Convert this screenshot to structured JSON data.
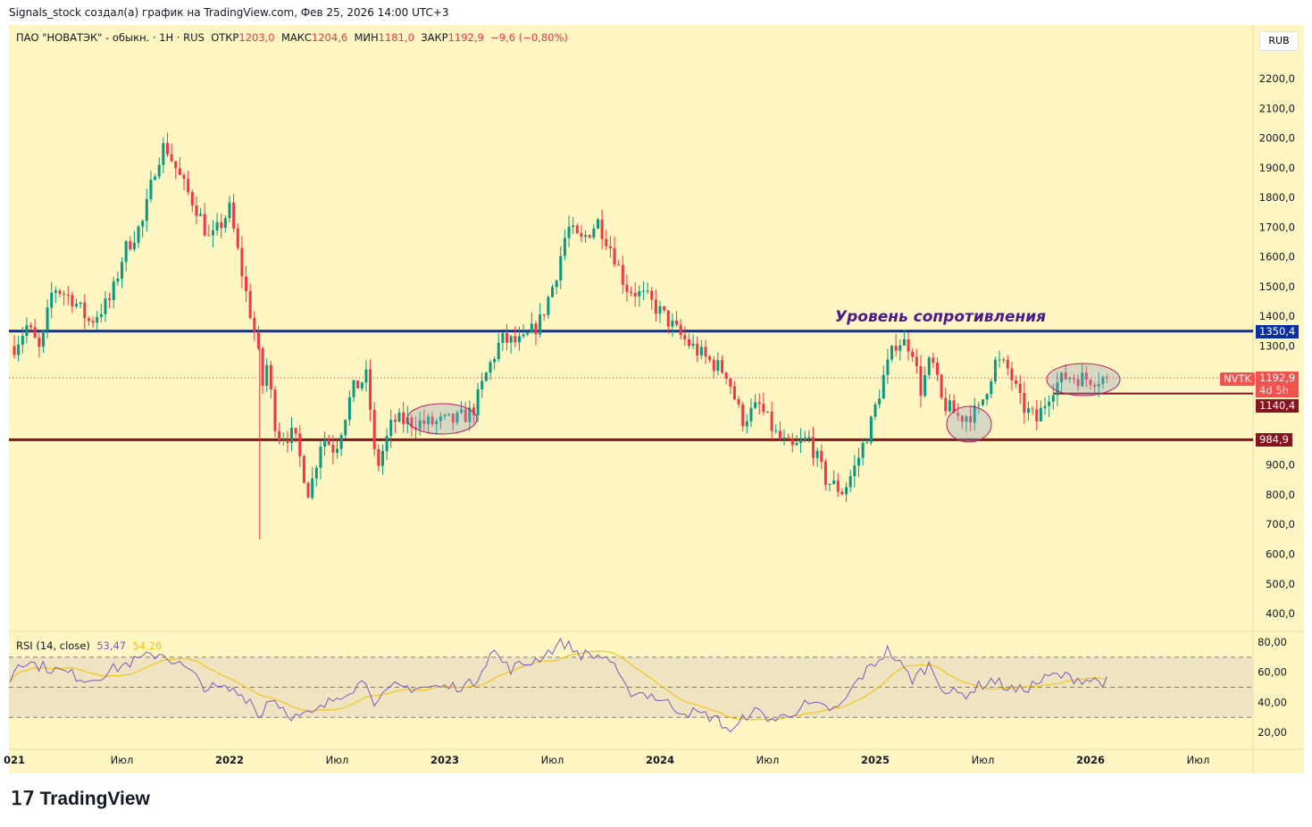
{
  "header": {
    "attribution": "Signals_stock создал(а) график на TradingView.com, Фев 25, 2026 14:00 UTC+3"
  },
  "legend": {
    "symbol": "ПАО \"НОВАТЭК\" - обыкн. · 1H · RUS",
    "open_label": "ОТКР",
    "open": "1203,0",
    "high_label": "МАКС",
    "high": "1204,6",
    "low_label": "МИН",
    "low": "1181,0",
    "close_label": "ЗАКР",
    "close": "1192,9",
    "change": "−9,6 (−0,80%)"
  },
  "currency": "RUB",
  "annotation": "Уровень сопротивления",
  "price_tags": {
    "ticker": "NVTK",
    "last": "1192,9",
    "countdown": "4d 5h",
    "resistance": "1350,4",
    "level_mid": "1140,4",
    "support": "984,9"
  },
  "rsi_legend": {
    "label": "RSI (14, close)",
    "rsi": "53,47",
    "ma": "54,26"
  },
  "logo": "TradingView",
  "colors": {
    "up": "#089981",
    "down": "#f23645",
    "resistance": "#0b2f9e",
    "support": "#861520",
    "rsi": "#7e57c2",
    "rsi_ma": "#f5c518"
  },
  "chart_data": {
    "type": "candlestick",
    "title": "ПАО \"НОВАТЭК\"",
    "ylim": [
      350,
      2250
    ],
    "y_ticks": [
      "2200,0",
      "2100,0",
      "2000,0",
      "1900,0",
      "1800,0",
      "1700,0",
      "1600,0",
      "1500,0",
      "1400,0",
      "1300,0",
      "1200,0",
      "1100,0",
      "1000,0",
      "900,0",
      "800,0",
      "700,0",
      "600,0",
      "500,0",
      "400,0"
    ],
    "y_tick_values": [
      2200,
      2100,
      2000,
      1900,
      1800,
      1700,
      1600,
      1500,
      1400,
      1300,
      1200,
      1100,
      1000,
      900,
      800,
      700,
      600,
      500,
      400
    ],
    "x_ticks": [
      {
        "t": 2021.0,
        "label": "021"
      },
      {
        "t": 2021.5,
        "label": "Июл"
      },
      {
        "t": 2022.0,
        "label": "2022"
      },
      {
        "t": 2022.5,
        "label": "Июл"
      },
      {
        "t": 2023.0,
        "label": "2023"
      },
      {
        "t": 2023.5,
        "label": "Июл"
      },
      {
        "t": 2024.0,
        "label": "2024"
      },
      {
        "t": 2024.5,
        "label": "Июл"
      },
      {
        "t": 2025.0,
        "label": "2025"
      },
      {
        "t": 2025.5,
        "label": "Июл"
      },
      {
        "t": 2026.0,
        "label": "2026"
      },
      {
        "t": 2026.5,
        "label": "Июл"
      }
    ],
    "horizontal_levels": [
      1350.4,
      1140.4,
      984.9
    ],
    "price_path": [
      [
        2021.0,
        1300
      ],
      [
        2021.06,
        1370
      ],
      [
        2021.12,
        1280
      ],
      [
        2021.18,
        1500
      ],
      [
        2021.27,
        1460
      ],
      [
        2021.35,
        1380
      ],
      [
        2021.45,
        1460
      ],
      [
        2021.51,
        1620
      ],
      [
        2021.6,
        1720
      ],
      [
        2021.66,
        1920
      ],
      [
        2021.7,
        1980
      ],
      [
        2021.78,
        1850
      ],
      [
        2021.85,
        1760
      ],
      [
        2021.91,
        1650
      ],
      [
        2022.0,
        1760
      ],
      [
        2022.07,
        1500
      ],
      [
        2022.13,
        1300
      ],
      [
        2022.15,
        1150
      ],
      [
        2022.17,
        1250
      ],
      [
        2022.22,
        1000
      ],
      [
        2022.3,
        1000
      ],
      [
        2022.37,
        800
      ],
      [
        2022.43,
        1000
      ],
      [
        2022.49,
        950
      ],
      [
        2022.57,
        1150
      ],
      [
        2022.64,
        1200
      ],
      [
        2022.68,
        880
      ],
      [
        2022.76,
        1050
      ],
      [
        2022.93,
        1040
      ],
      [
        2023.05,
        1050
      ],
      [
        2023.13,
        1080
      ],
      [
        2023.2,
        1220
      ],
      [
        2023.26,
        1320
      ],
      [
        2023.36,
        1310
      ],
      [
        2023.44,
        1380
      ],
      [
        2023.51,
        1520
      ],
      [
        2023.57,
        1700
      ],
      [
        2023.63,
        1650
      ],
      [
        2023.71,
        1720
      ],
      [
        2023.78,
        1620
      ],
      [
        2023.84,
        1500
      ],
      [
        2023.94,
        1460
      ],
      [
        2024.02,
        1400
      ],
      [
        2024.1,
        1330
      ],
      [
        2024.21,
        1260
      ],
      [
        2024.31,
        1210
      ],
      [
        2024.38,
        1050
      ],
      [
        2024.46,
        1100
      ],
      [
        2024.54,
        1000
      ],
      [
        2024.61,
        950
      ],
      [
        2024.69,
        990
      ],
      [
        2024.77,
        850
      ],
      [
        2024.85,
        810
      ],
      [
        2024.91,
        900
      ],
      [
        2024.98,
        1040
      ],
      [
        2025.04,
        1200
      ],
      [
        2025.1,
        1320
      ],
      [
        2025.17,
        1300
      ],
      [
        2025.21,
        1150
      ],
      [
        2025.26,
        1260
      ],
      [
        2025.31,
        1110
      ],
      [
        2025.39,
        1060
      ],
      [
        2025.48,
        1080
      ],
      [
        2025.56,
        1250
      ],
      [
        2025.62,
        1220
      ],
      [
        2025.68,
        1100
      ],
      [
        2025.75,
        1050
      ],
      [
        2025.82,
        1160
      ],
      [
        2025.89,
        1200
      ],
      [
        2025.98,
        1190
      ],
      [
        2026.08,
        1192.9
      ]
    ],
    "rsi": {
      "ylim": [
        10,
        85
      ],
      "ticks": [
        "80,00",
        "60,00",
        "40,00",
        "20,00"
      ],
      "tick_values": [
        80,
        60,
        40,
        20
      ],
      "bands": [
        70,
        50,
        30
      ],
      "path": [
        [
          2020.98,
          55
        ],
        [
          2021.02,
          68
        ],
        [
          2021.18,
          62
        ],
        [
          2021.35,
          55
        ],
        [
          2021.51,
          65
        ],
        [
          2021.68,
          73
        ],
        [
          2021.8,
          62
        ],
        [
          2021.89,
          50
        ],
        [
          2022.01,
          48
        ],
        [
          2022.12,
          40
        ],
        [
          2022.14,
          25
        ],
        [
          2022.18,
          45
        ],
        [
          2022.3,
          30
        ],
        [
          2022.39,
          32
        ],
        [
          2022.51,
          45
        ],
        [
          2022.64,
          55
        ],
        [
          2022.68,
          38
        ],
        [
          2022.76,
          50
        ],
        [
          2023.01,
          50
        ],
        [
          2023.13,
          52
        ],
        [
          2023.22,
          75
        ],
        [
          2023.3,
          62
        ],
        [
          2023.42,
          68
        ],
        [
          2023.55,
          80
        ],
        [
          2023.63,
          72
        ],
        [
          2023.76,
          70
        ],
        [
          2023.84,
          48
        ],
        [
          2023.96,
          45
        ],
        [
          2024.09,
          35
        ],
        [
          2024.25,
          30
        ],
        [
          2024.34,
          20
        ],
        [
          2024.42,
          35
        ],
        [
          2024.54,
          28
        ],
        [
          2024.67,
          38
        ],
        [
          2024.83,
          35
        ],
        [
          2024.92,
          55
        ],
        [
          2025.06,
          75
        ],
        [
          2025.17,
          55
        ],
        [
          2025.25,
          65
        ],
        [
          2025.33,
          47
        ],
        [
          2025.41,
          45
        ],
        [
          2025.54,
          55
        ],
        [
          2025.66,
          47
        ],
        [
          2025.83,
          58
        ],
        [
          2025.99,
          55
        ],
        [
          2026.08,
          53.47
        ]
      ]
    }
  }
}
